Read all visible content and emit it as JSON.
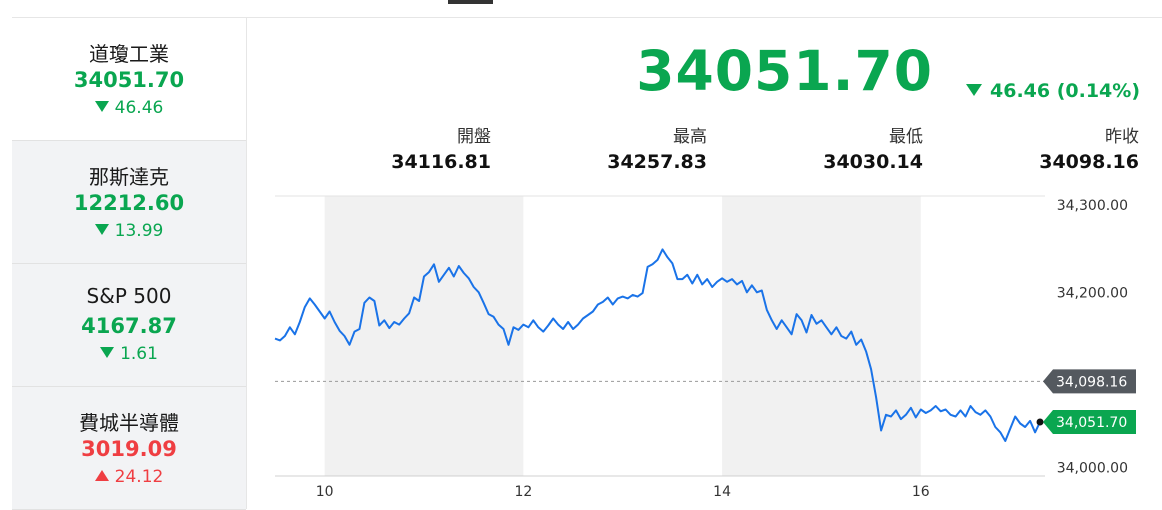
{
  "sidebar": {
    "items": [
      {
        "name": "道瓊工業",
        "price": "34051.70",
        "change": "46.46",
        "direction": "down"
      },
      {
        "name": "那斯達克",
        "price": "12212.60",
        "change": "13.99",
        "direction": "down"
      },
      {
        "name": "S&P 500",
        "price": "4167.87",
        "change": "1.61",
        "direction": "down"
      },
      {
        "name": "費城半導體",
        "price": "3019.09",
        "change": "24.12",
        "direction": "up"
      }
    ]
  },
  "quote": {
    "price": "34051.70",
    "change": "46.46 (0.14%)",
    "stats": [
      {
        "label": "開盤",
        "value": "34116.81"
      },
      {
        "label": "最高",
        "value": "34257.83"
      },
      {
        "label": "最低",
        "value": "34030.14"
      },
      {
        "label": "昨收",
        "value": "34098.16"
      }
    ]
  },
  "colors": {
    "down": "#0aa650",
    "up": "#ef3e42",
    "line": "#1a73e8",
    "band": "#f1f1f1",
    "prev_close_tag": "#54595f"
  },
  "chart_data": {
    "type": "line",
    "x_ticks": [
      "10",
      "12",
      "14",
      "16"
    ],
    "y_ticks": [
      "34,300.00",
      "34,200.00",
      "34,000.00"
    ],
    "ylim": [
      33990,
      34310
    ],
    "prev_close": 34098.16,
    "prev_close_label": "34,098.16",
    "last": 34051.7,
    "last_label": "34,051.70",
    "shaded_bands": [
      [
        10,
        12
      ],
      [
        14,
        16
      ]
    ],
    "series": [
      {
        "values": [
          [
            9.5,
            34147
          ],
          [
            9.55,
            34145
          ],
          [
            9.6,
            34150
          ],
          [
            9.65,
            34160
          ],
          [
            9.7,
            34152
          ],
          [
            9.75,
            34166
          ],
          [
            9.8,
            34183
          ],
          [
            9.85,
            34193
          ],
          [
            9.9,
            34186
          ],
          [
            9.95,
            34178
          ],
          [
            10.0,
            34170
          ],
          [
            10.05,
            34178
          ],
          [
            10.1,
            34166
          ],
          [
            10.15,
            34156
          ],
          [
            10.2,
            34150
          ],
          [
            10.25,
            34140
          ],
          [
            10.3,
            34155
          ],
          [
            10.35,
            34158
          ],
          [
            10.4,
            34188
          ],
          [
            10.45,
            34194
          ],
          [
            10.5,
            34190
          ],
          [
            10.55,
            34162
          ],
          [
            10.6,
            34168
          ],
          [
            10.65,
            34159
          ],
          [
            10.7,
            34166
          ],
          [
            10.75,
            34163
          ],
          [
            10.8,
            34170
          ],
          [
            10.85,
            34176
          ],
          [
            10.9,
            34194
          ],
          [
            10.95,
            34190
          ],
          [
            11.0,
            34218
          ],
          [
            11.05,
            34223
          ],
          [
            11.1,
            34232
          ],
          [
            11.15,
            34212
          ],
          [
            11.2,
            34220
          ],
          [
            11.25,
            34228
          ],
          [
            11.3,
            34218
          ],
          [
            11.35,
            34230
          ],
          [
            11.4,
            34222
          ],
          [
            11.45,
            34216
          ],
          [
            11.5,
            34206
          ],
          [
            11.55,
            34200
          ],
          [
            11.6,
            34188
          ],
          [
            11.65,
            34175
          ],
          [
            11.7,
            34172
          ],
          [
            11.75,
            34163
          ],
          [
            11.8,
            34158
          ],
          [
            11.85,
            34140
          ],
          [
            11.9,
            34160
          ],
          [
            11.95,
            34157
          ],
          [
            12.0,
            34163
          ],
          [
            12.05,
            34160
          ],
          [
            12.1,
            34168
          ],
          [
            12.15,
            34160
          ],
          [
            12.2,
            34155
          ],
          [
            12.25,
            34162
          ],
          [
            12.3,
            34170
          ],
          [
            12.35,
            34163
          ],
          [
            12.4,
            34158
          ],
          [
            12.45,
            34166
          ],
          [
            12.5,
            34158
          ],
          [
            12.55,
            34163
          ],
          [
            12.6,
            34170
          ],
          [
            12.65,
            34174
          ],
          [
            12.7,
            34178
          ],
          [
            12.75,
            34186
          ],
          [
            12.8,
            34189
          ],
          [
            12.85,
            34194
          ],
          [
            12.9,
            34186
          ],
          [
            12.95,
            34193
          ],
          [
            13.0,
            34195
          ],
          [
            13.05,
            34193
          ],
          [
            13.1,
            34197
          ],
          [
            13.15,
            34195
          ],
          [
            13.2,
            34199
          ],
          [
            13.25,
            34229
          ],
          [
            13.3,
            34232
          ],
          [
            13.35,
            34237
          ],
          [
            13.4,
            34249
          ],
          [
            13.45,
            34240
          ],
          [
            13.5,
            34233
          ],
          [
            13.55,
            34215
          ],
          [
            13.6,
            34215
          ],
          [
            13.65,
            34220
          ],
          [
            13.7,
            34210
          ],
          [
            13.75,
            34220
          ],
          [
            13.8,
            34209
          ],
          [
            13.85,
            34215
          ],
          [
            13.9,
            34206
          ],
          [
            13.95,
            34212
          ],
          [
            14.0,
            34216
          ],
          [
            14.05,
            34212
          ],
          [
            14.1,
            34215
          ],
          [
            14.15,
            34209
          ],
          [
            14.2,
            34213
          ],
          [
            14.25,
            34200
          ],
          [
            14.3,
            34208
          ],
          [
            14.35,
            34200
          ],
          [
            14.4,
            34202
          ],
          [
            14.45,
            34180
          ],
          [
            14.5,
            34168
          ],
          [
            14.55,
            34158
          ],
          [
            14.6,
            34168
          ],
          [
            14.65,
            34160
          ],
          [
            14.7,
            34152
          ],
          [
            14.75,
            34175
          ],
          [
            14.8,
            34168
          ],
          [
            14.85,
            34154
          ],
          [
            14.9,
            34174
          ],
          [
            14.95,
            34164
          ],
          [
            15.0,
            34168
          ],
          [
            15.05,
            34160
          ],
          [
            15.1,
            34152
          ],
          [
            15.15,
            34160
          ],
          [
            15.2,
            34150
          ],
          [
            15.25,
            34147
          ],
          [
            15.3,
            34155
          ],
          [
            15.35,
            34140
          ],
          [
            15.4,
            34146
          ],
          [
            15.45,
            34132
          ],
          [
            15.5,
            34112
          ],
          [
            15.55,
            34080
          ],
          [
            15.6,
            34042
          ],
          [
            15.65,
            34060
          ],
          [
            15.7,
            34058
          ],
          [
            15.75,
            34065
          ],
          [
            15.8,
            34055
          ],
          [
            15.85,
            34060
          ],
          [
            15.9,
            34068
          ],
          [
            15.95,
            34057
          ],
          [
            16.0,
            34066
          ],
          [
            16.05,
            34062
          ],
          [
            16.1,
            34065
          ],
          [
            16.15,
            34070
          ],
          [
            16.2,
            34064
          ],
          [
            16.25,
            34066
          ],
          [
            16.3,
            34060
          ],
          [
            16.35,
            34058
          ],
          [
            16.4,
            34065
          ],
          [
            16.45,
            34058
          ],
          [
            16.5,
            34070
          ],
          [
            16.55,
            34063
          ],
          [
            16.6,
            34060
          ],
          [
            16.65,
            34065
          ],
          [
            16.7,
            34058
          ],
          [
            16.75,
            34046
          ],
          [
            16.8,
            34040
          ],
          [
            16.85,
            34030
          ],
          [
            16.9,
            34044
          ],
          [
            16.95,
            34058
          ],
          [
            17.0,
            34050
          ],
          [
            17.05,
            34046
          ],
          [
            17.1,
            34053
          ],
          [
            17.15,
            34040
          ],
          [
            17.2,
            34051.7
          ]
        ]
      }
    ]
  }
}
